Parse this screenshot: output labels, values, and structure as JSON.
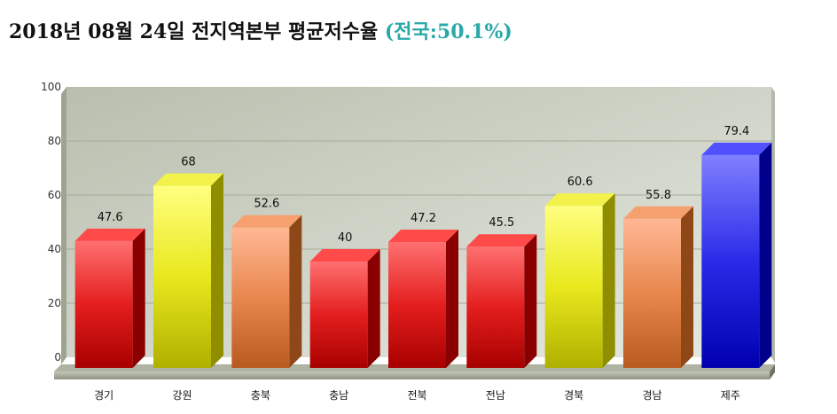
{
  "title": {
    "main": "2018년 08월 24일 전지역본부 평균저수율 ",
    "national": "(전국:50.1%)"
  },
  "colors": {
    "red": "#e41e1e",
    "yellow": "#e8e81e",
    "orange": "#e8874e",
    "blue": "#2a2ae8"
  },
  "chart_data": {
    "type": "bar",
    "title": "2018년 08월 24일 전지역본부 평균저수율 (전국:50.1%)",
    "categories": [
      "경기",
      "강원",
      "충북",
      "충남",
      "전북",
      "전남",
      "경북",
      "경남",
      "제주"
    ],
    "values": [
      47.6,
      68,
      52.6,
      40,
      47.2,
      45.5,
      60.6,
      55.8,
      79.4
    ],
    "value_labels": [
      "47.6",
      "68",
      "52.6",
      "40",
      "47.2",
      "45.5",
      "60.6",
      "55.8",
      "79.4"
    ],
    "bar_colors": [
      "red",
      "yellow",
      "orange",
      "red",
      "red",
      "red",
      "yellow",
      "orange",
      "blue"
    ],
    "yticks": [
      0,
      20,
      40,
      60,
      80,
      100
    ],
    "ytick_labels": [
      "0",
      "20",
      "40",
      "60",
      "80",
      "100"
    ],
    "ylim": [
      0,
      100
    ],
    "grid": true,
    "legend": "none",
    "style": "3d"
  }
}
